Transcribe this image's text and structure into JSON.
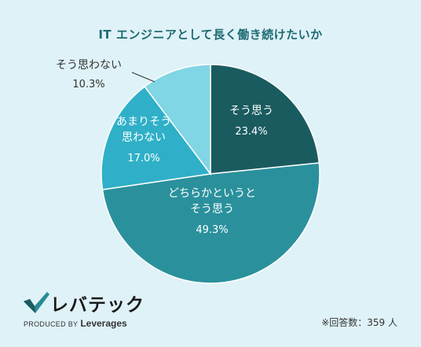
{
  "title": "IT エンジニアとして長く働き続けたいか",
  "chart_data": {
    "type": "pie",
    "title": "IT エンジニアとして長く働き続けたいか",
    "slices": [
      {
        "label": "そう思う",
        "label_lines": [
          "そう思う"
        ],
        "value": 23.4,
        "value_text": "23.4%",
        "color": "#1a5b60"
      },
      {
        "label": "どちらかというとそう思う",
        "label_lines": [
          "どちらかというと",
          "そう思う"
        ],
        "value": 49.3,
        "value_text": "49.3%",
        "color": "#2a919c"
      },
      {
        "label": "あまりそう思わない",
        "label_lines": [
          "あまりそう",
          "思わない"
        ],
        "value": 17.0,
        "value_text": "17.0%",
        "color": "#2fb0c8"
      },
      {
        "label": "そう思わない",
        "label_lines": [
          "そう思わない"
        ],
        "value": 10.3,
        "value_text": "10.3%",
        "color": "#80d6e4"
      }
    ],
    "start": "12 o'clock",
    "direction": "clockwise"
  },
  "logo": {
    "name": "レバテック",
    "produced_by": "PRODUCED BY",
    "brand": "Leverages"
  },
  "note": "※回答数：359 人"
}
